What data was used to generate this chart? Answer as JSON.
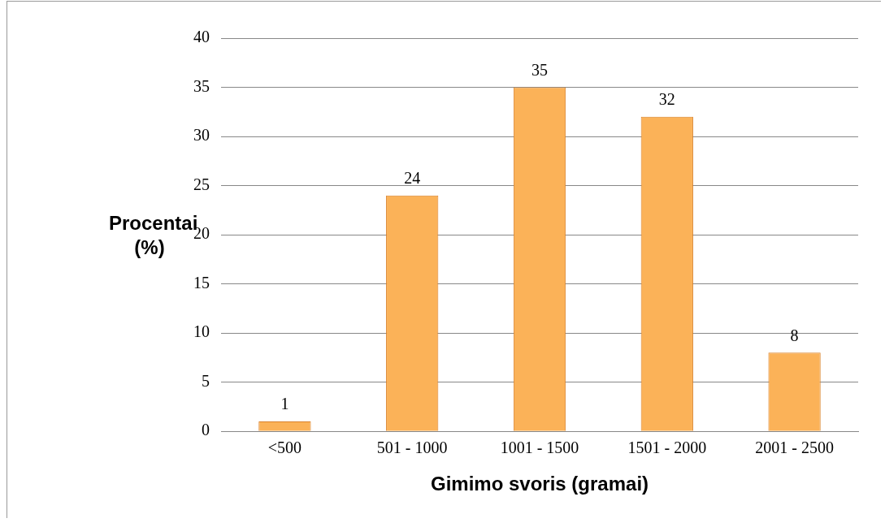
{
  "chart_data": {
    "type": "bar",
    "xlabel": "Gimimo svoris (gramai)",
    "ylabel": "Procentai (%)",
    "categories": [
      "<500",
      "501 - 1000",
      "1001 - 1500",
      "1501 - 2000",
      "2001 - 2500"
    ],
    "values": [
      1,
      24,
      35,
      32,
      8
    ],
    "color": "#fbb258",
    "ylim": [
      0,
      40
    ],
    "yticks": [
      0,
      5,
      10,
      15,
      20,
      25,
      30,
      35,
      40
    ],
    "grid": "y",
    "data_labels": true
  }
}
